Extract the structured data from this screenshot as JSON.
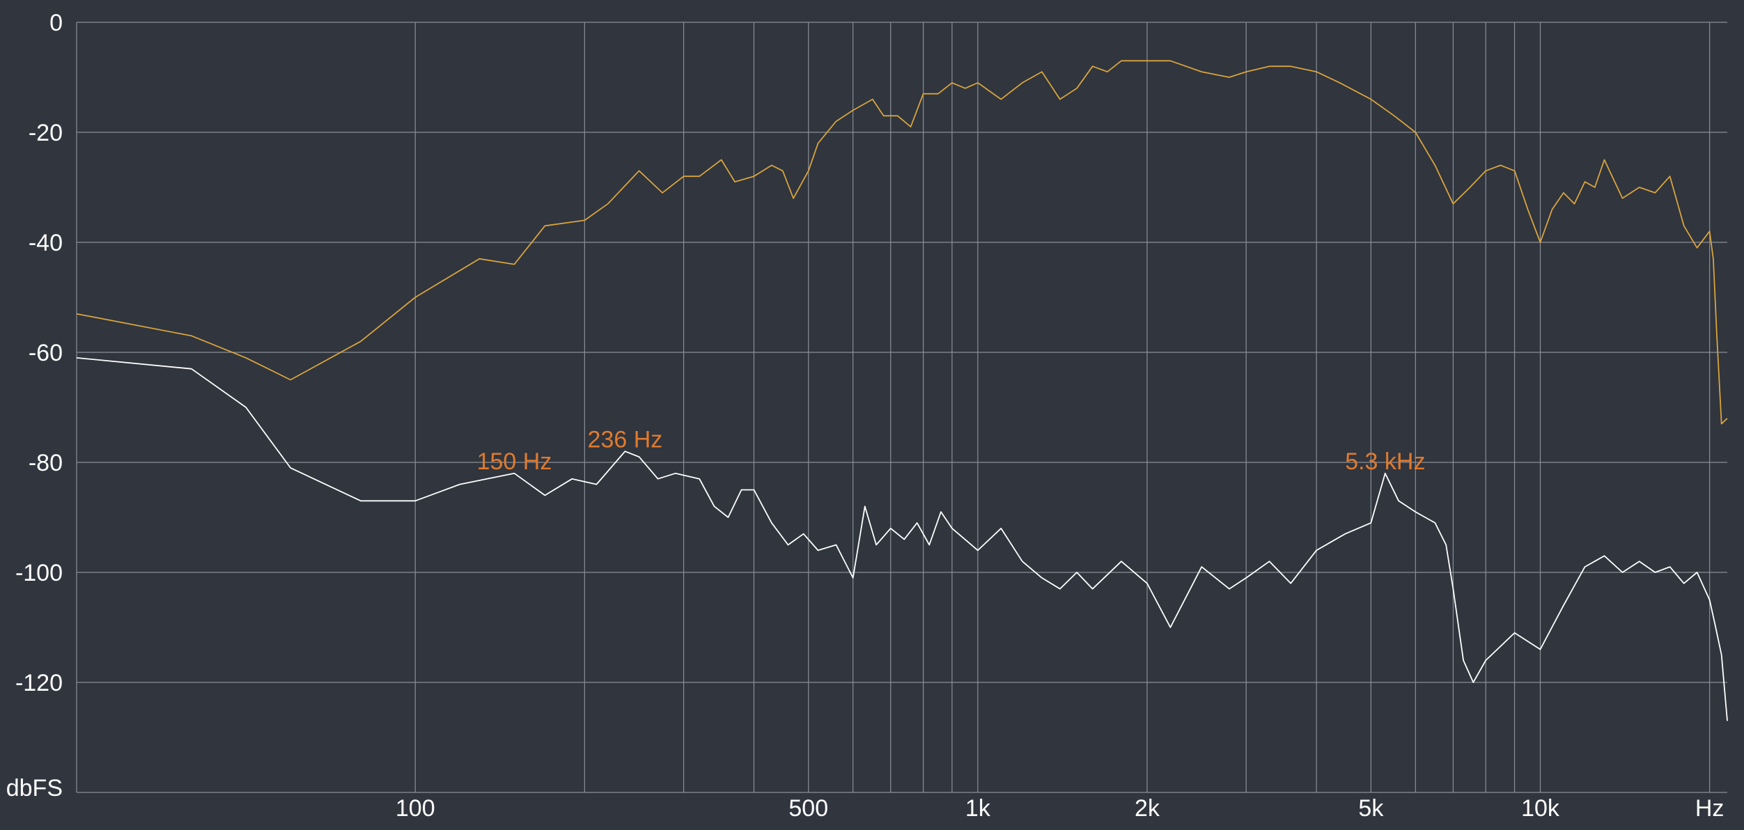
{
  "chart_data": {
    "type": "line",
    "x_scale": "log",
    "xlim": [
      25,
      21500
    ],
    "ylim": [
      -140,
      0
    ],
    "grid": true,
    "xlabel": "Hz",
    "ylabel": "dbFS",
    "y_ticks": [
      0,
      -20,
      -40,
      -60,
      -80,
      -100,
      -120
    ],
    "x_ticks": [
      {
        "value": 100,
        "label": "100"
      },
      {
        "value": 500,
        "label": "500"
      },
      {
        "value": 1000,
        "label": "1k"
      },
      {
        "value": 2000,
        "label": "2k"
      },
      {
        "value": 5000,
        "label": "5k"
      },
      {
        "value": 10000,
        "label": "10k"
      },
      {
        "value": 20000,
        "label": "Hz"
      }
    ],
    "x_minor_grid": [
      200,
      300,
      400,
      600,
      700,
      800,
      900,
      3000,
      4000,
      6000,
      7000,
      8000,
      9000
    ],
    "annotations": [
      {
        "text": "150 Hz",
        "x": 150,
        "y": -80
      },
      {
        "text": "236 Hz",
        "x": 236,
        "y": -76
      },
      {
        "text": "5.3  kHz",
        "x": 5300,
        "y": -80
      }
    ],
    "series": [
      {
        "color": "#d9a43c",
        "x": [
          25,
          40,
          50,
          60,
          80,
          100,
          130,
          150,
          170,
          200,
          220,
          250,
          275,
          300,
          320,
          350,
          370,
          400,
          430,
          450,
          470,
          500,
          520,
          560,
          600,
          650,
          680,
          720,
          760,
          800,
          850,
          900,
          950,
          1000,
          1100,
          1200,
          1300,
          1400,
          1500,
          1600,
          1700,
          1800,
          2000,
          2200,
          2500,
          2800,
          3000,
          3300,
          3600,
          4000,
          4400,
          5000,
          5500,
          6000,
          6500,
          7000,
          7500,
          8000,
          8500,
          9000,
          9500,
          10000,
          10500,
          11000,
          11500,
          12000,
          12500,
          13000,
          14000,
          15000,
          16000,
          17000,
          18000,
          19000,
          20000,
          20300,
          20600,
          21000,
          21500
        ],
        "y": [
          -53,
          -57,
          -61,
          -65,
          -58,
          -50,
          -43,
          -44,
          -37,
          -36,
          -33,
          -27,
          -31,
          -28,
          -28,
          -25,
          -29,
          -28,
          -26,
          -27,
          -32,
          -27,
          -22,
          -18,
          -16,
          -14,
          -17,
          -17,
          -19,
          -13,
          -13,
          -11,
          -12,
          -11,
          -14,
          -11,
          -9,
          -14,
          -12,
          -8,
          -9,
          -7,
          -7,
          -7,
          -9,
          -10,
          -9,
          -8,
          -8,
          -9,
          -11,
          -14,
          -17,
          -20,
          -26,
          -33,
          -30,
          -27,
          -26,
          -27,
          -34,
          -40,
          -34,
          -31,
          -33,
          -29,
          -30,
          -25,
          -32,
          -30,
          -31,
          -28,
          -37,
          -41,
          -38,
          -43,
          -57,
          -73,
          -72
        ]
      },
      {
        "color": "#ffffff",
        "x": [
          25,
          40,
          50,
          60,
          80,
          100,
          120,
          150,
          170,
          190,
          210,
          236,
          250,
          270,
          290,
          320,
          340,
          360,
          380,
          400,
          430,
          460,
          490,
          520,
          560,
          600,
          630,
          660,
          700,
          740,
          780,
          820,
          860,
          900,
          1000,
          1100,
          1200,
          1300,
          1400,
          1500,
          1600,
          1800,
          2000,
          2200,
          2500,
          2800,
          3000,
          3300,
          3600,
          4000,
          4500,
          5000,
          5300,
          5600,
          6000,
          6500,
          6800,
          7000,
          7300,
          7600,
          8000,
          9000,
          10000,
          11000,
          12000,
          13000,
          14000,
          15000,
          16000,
          17000,
          18000,
          19000,
          20000,
          20500,
          21000,
          21500
        ],
        "y": [
          -61,
          -63,
          -70,
          -81,
          -87,
          -87,
          -84,
          -82,
          -86,
          -83,
          -84,
          -78,
          -79,
          -83,
          -82,
          -83,
          -88,
          -90,
          -85,
          -85,
          -91,
          -95,
          -93,
          -96,
          -95,
          -101,
          -88,
          -95,
          -92,
          -94,
          -91,
          -95,
          -89,
          -92,
          -96,
          -92,
          -98,
          -101,
          -103,
          -100,
          -103,
          -98,
          -102,
          -110,
          -99,
          -103,
          -101,
          -98,
          -102,
          -96,
          -93,
          -91,
          -82,
          -87,
          -89,
          -91,
          -95,
          -103,
          -116,
          -120,
          -116,
          -111,
          -114,
          -106,
          -99,
          -97,
          -100,
          -98,
          -100,
          -99,
          -102,
          -100,
          -105,
          -110,
          -115,
          -127
        ]
      }
    ]
  }
}
